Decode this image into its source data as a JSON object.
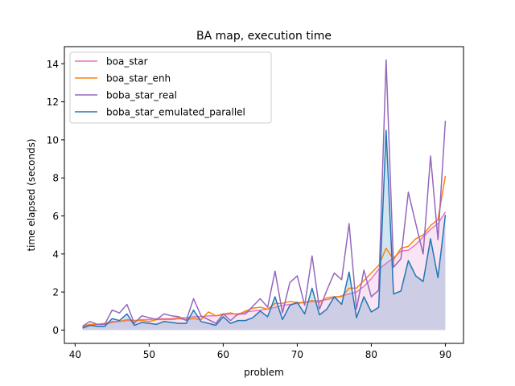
{
  "chart_data": {
    "type": "line",
    "title": "BA map, execution time",
    "xlabel": "problem",
    "ylabel": "time elapsed (seconds)",
    "xlim": [
      38.55,
      92.45
    ],
    "ylim": [
      -0.7,
      14.9
    ],
    "xticks": [
      40,
      50,
      60,
      70,
      80,
      90
    ],
    "yticks": [
      0,
      2,
      4,
      6,
      8,
      10,
      12,
      14
    ],
    "grid": false,
    "legend_position": "upper-left",
    "x": [
      41,
      42,
      43,
      44,
      45,
      46,
      47,
      48,
      49,
      50,
      51,
      52,
      53,
      54,
      55,
      56,
      57,
      58,
      59,
      60,
      61,
      62,
      63,
      64,
      65,
      66,
      67,
      68,
      69,
      70,
      71,
      72,
      73,
      74,
      75,
      76,
      77,
      78,
      79,
      80,
      81,
      82,
      83,
      84,
      85,
      86,
      87,
      88,
      89,
      90
    ],
    "series": [
      {
        "name": "boa_star",
        "color": "#e377c2",
        "fill": "#e377c2",
        "values": [
          0.15,
          0.25,
          0.3,
          0.3,
          0.4,
          0.45,
          0.5,
          0.5,
          0.55,
          0.55,
          0.6,
          0.6,
          0.6,
          0.65,
          0.65,
          0.7,
          0.7,
          0.75,
          0.75,
          0.8,
          0.85,
          0.85,
          0.95,
          1.0,
          1.05,
          1.1,
          1.2,
          1.3,
          1.35,
          1.4,
          1.45,
          1.5,
          1.55,
          1.6,
          1.7,
          1.8,
          1.9,
          2.0,
          2.3,
          2.7,
          3.2,
          3.5,
          3.8,
          4.15,
          4.2,
          4.5,
          4.9,
          5.3,
          5.6,
          6.2
        ]
      },
      {
        "name": "boa_star_enh",
        "color": "#ff7f0e",
        "values": [
          0.2,
          0.3,
          0.3,
          0.35,
          0.45,
          0.45,
          0.55,
          0.5,
          0.5,
          0.45,
          0.55,
          0.55,
          0.55,
          0.6,
          0.55,
          0.6,
          0.55,
          0.95,
          0.75,
          0.85,
          0.9,
          0.8,
          1.0,
          1.15,
          1.2,
          1.1,
          1.4,
          1.4,
          1.5,
          1.45,
          1.45,
          1.55,
          1.45,
          1.7,
          1.75,
          1.75,
          2.2,
          2.2,
          2.6,
          3.0,
          3.4,
          4.3,
          3.7,
          4.3,
          4.4,
          4.8,
          5.0,
          5.5,
          5.8,
          8.1
        ]
      },
      {
        "name": "boba_star_real",
        "color": "#9467bd",
        "values": [
          0.2,
          0.45,
          0.3,
          0.3,
          1.05,
          0.9,
          1.35,
          0.35,
          0.75,
          0.65,
          0.55,
          0.85,
          0.75,
          0.7,
          0.5,
          1.65,
          0.75,
          0.55,
          0.35,
          0.85,
          0.5,
          0.85,
          0.85,
          1.25,
          1.65,
          1.2,
          3.1,
          0.9,
          2.5,
          2.85,
          1.3,
          3.9,
          1.1,
          2.1,
          3.0,
          2.65,
          5.6,
          1.1,
          3.15,
          1.75,
          2.1,
          14.2,
          3.3,
          3.75,
          7.25,
          5.6,
          4.0,
          9.15,
          4.75,
          11.0
        ]
      },
      {
        "name": "boba_star_emulated_parallel",
        "color": "#1f77b4",
        "fill": "#1f77b4",
        "values": [
          0.1,
          0.25,
          0.2,
          0.2,
          0.6,
          0.5,
          0.85,
          0.25,
          0.4,
          0.35,
          0.3,
          0.45,
          0.4,
          0.35,
          0.35,
          1.05,
          0.45,
          0.35,
          0.25,
          0.7,
          0.35,
          0.5,
          0.5,
          0.65,
          1.0,
          0.7,
          1.75,
          0.55,
          1.3,
          1.45,
          0.85,
          2.2,
          0.8,
          1.1,
          1.75,
          1.35,
          3.05,
          0.65,
          1.75,
          0.95,
          1.2,
          10.5,
          1.9,
          2.05,
          3.65,
          2.85,
          2.55,
          4.8,
          2.75,
          6.05
        ]
      }
    ]
  }
}
